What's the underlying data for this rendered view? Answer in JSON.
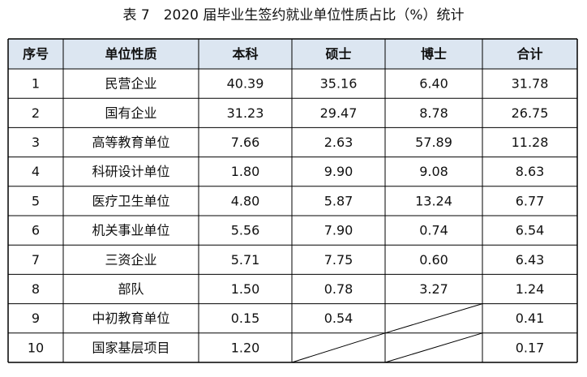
{
  "title": "表 7　2020 届毕业生签约就业单位性质占比（%）统计",
  "table": {
    "header": [
      "序号",
      "单位性质",
      "本科",
      "硕士",
      "博士",
      "合计"
    ],
    "rows": [
      [
        "1",
        "民营企业",
        "40.39",
        "35.16",
        "6.40",
        "31.78"
      ],
      [
        "2",
        "国有企业",
        "31.23",
        "29.47",
        "8.78",
        "26.75"
      ],
      [
        "3",
        "高等教育单位",
        "7.66",
        "2.63",
        "57.89",
        "11.28"
      ],
      [
        "4",
        "科研设计单位",
        "1.80",
        "9.90",
        "9.08",
        "8.63"
      ],
      [
        "5",
        "医疗卫生单位",
        "4.80",
        "5.87",
        "13.24",
        "6.77"
      ],
      [
        "6",
        "机关事业单位",
        "5.56",
        "7.90",
        "0.74",
        "6.54"
      ],
      [
        "7",
        "三资企业",
        "5.71",
        "7.75",
        "0.60",
        "6.43"
      ],
      [
        "8",
        "部队",
        "1.50",
        "0.78",
        "3.27",
        "1.24"
      ],
      [
        "9",
        "中初教育单位",
        "0.15",
        "0.54",
        null,
        "0.41"
      ],
      [
        "10",
        "国家基层项目",
        "1.20",
        null,
        null,
        "0.17"
      ]
    ]
  }
}
